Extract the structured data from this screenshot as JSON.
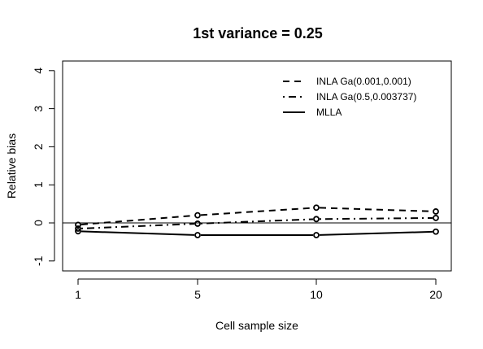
{
  "chart_data": {
    "type": "line",
    "title": "1st variance = 0.25",
    "xlabel": "Cell sample size",
    "ylabel": "Relative bias",
    "x": [
      1,
      5,
      10,
      20
    ],
    "x_tick_labels": [
      "1",
      "5",
      "10",
      "20"
    ],
    "y_ticks": [
      -1,
      0,
      1,
      2,
      3,
      4
    ],
    "y_tick_labels": [
      "-1",
      "0",
      "1",
      "2",
      "3",
      "4"
    ],
    "ylim": [
      -1.2,
      4.2
    ],
    "reference_line_y": 0,
    "legend_position": "top-right",
    "series": [
      {
        "name": "INLA Ga(0.001,0.001)",
        "line_style": "dashed",
        "values": [
          -0.05,
          0.2,
          0.4,
          0.3
        ]
      },
      {
        "name": "INLA Ga(0.5,0.003737)",
        "line_style": "dotdash",
        "values": [
          -0.15,
          -0.02,
          0.1,
          0.13
        ]
      },
      {
        "name": "MLLA",
        "line_style": "solid",
        "values": [
          -0.22,
          -0.32,
          -0.32,
          -0.23
        ]
      }
    ]
  }
}
